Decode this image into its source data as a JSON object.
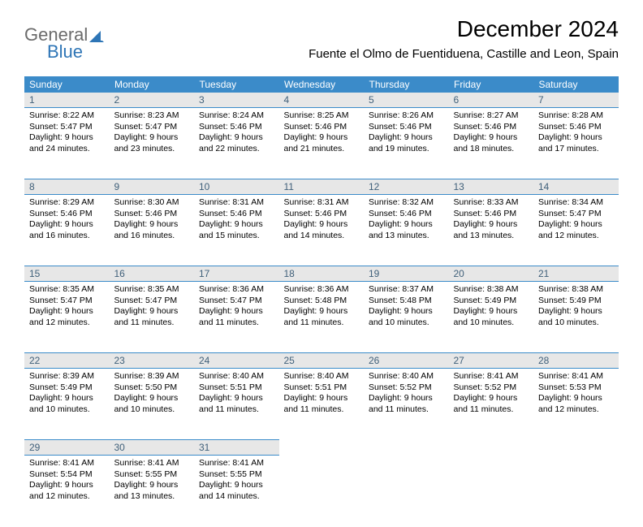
{
  "logo": {
    "gray": "General",
    "blue": "Blue"
  },
  "title": "December 2024",
  "location": "Fuente el Olmo de Fuentiduena, Castille and Leon, Spain",
  "colors": {
    "header_bg": "#3b8bc9",
    "header_text": "#ffffff",
    "daynum_bg": "#e7e7e7",
    "daynum_text": "#40607a",
    "border": "#3b8bc9",
    "logo_gray": "#6b6b6b",
    "logo_blue": "#2e75b6"
  },
  "day_names": [
    "Sunday",
    "Monday",
    "Tuesday",
    "Wednesday",
    "Thursday",
    "Friday",
    "Saturday"
  ],
  "weeks": [
    [
      {
        "n": "1",
        "sr": "8:22 AM",
        "ss": "5:47 PM",
        "dl": "9 hours and 24 minutes."
      },
      {
        "n": "2",
        "sr": "8:23 AM",
        "ss": "5:47 PM",
        "dl": "9 hours and 23 minutes."
      },
      {
        "n": "3",
        "sr": "8:24 AM",
        "ss": "5:46 PM",
        "dl": "9 hours and 22 minutes."
      },
      {
        "n": "4",
        "sr": "8:25 AM",
        "ss": "5:46 PM",
        "dl": "9 hours and 21 minutes."
      },
      {
        "n": "5",
        "sr": "8:26 AM",
        "ss": "5:46 PM",
        "dl": "9 hours and 19 minutes."
      },
      {
        "n": "6",
        "sr": "8:27 AM",
        "ss": "5:46 PM",
        "dl": "9 hours and 18 minutes."
      },
      {
        "n": "7",
        "sr": "8:28 AM",
        "ss": "5:46 PM",
        "dl": "9 hours and 17 minutes."
      }
    ],
    [
      {
        "n": "8",
        "sr": "8:29 AM",
        "ss": "5:46 PM",
        "dl": "9 hours and 16 minutes."
      },
      {
        "n": "9",
        "sr": "8:30 AM",
        "ss": "5:46 PM",
        "dl": "9 hours and 16 minutes."
      },
      {
        "n": "10",
        "sr": "8:31 AM",
        "ss": "5:46 PM",
        "dl": "9 hours and 15 minutes."
      },
      {
        "n": "11",
        "sr": "8:31 AM",
        "ss": "5:46 PM",
        "dl": "9 hours and 14 minutes."
      },
      {
        "n": "12",
        "sr": "8:32 AM",
        "ss": "5:46 PM",
        "dl": "9 hours and 13 minutes."
      },
      {
        "n": "13",
        "sr": "8:33 AM",
        "ss": "5:46 PM",
        "dl": "9 hours and 13 minutes."
      },
      {
        "n": "14",
        "sr": "8:34 AM",
        "ss": "5:47 PM",
        "dl": "9 hours and 12 minutes."
      }
    ],
    [
      {
        "n": "15",
        "sr": "8:35 AM",
        "ss": "5:47 PM",
        "dl": "9 hours and 12 minutes."
      },
      {
        "n": "16",
        "sr": "8:35 AM",
        "ss": "5:47 PM",
        "dl": "9 hours and 11 minutes."
      },
      {
        "n": "17",
        "sr": "8:36 AM",
        "ss": "5:47 PM",
        "dl": "9 hours and 11 minutes."
      },
      {
        "n": "18",
        "sr": "8:36 AM",
        "ss": "5:48 PM",
        "dl": "9 hours and 11 minutes."
      },
      {
        "n": "19",
        "sr": "8:37 AM",
        "ss": "5:48 PM",
        "dl": "9 hours and 10 minutes."
      },
      {
        "n": "20",
        "sr": "8:38 AM",
        "ss": "5:49 PM",
        "dl": "9 hours and 10 minutes."
      },
      {
        "n": "21",
        "sr": "8:38 AM",
        "ss": "5:49 PM",
        "dl": "9 hours and 10 minutes."
      }
    ],
    [
      {
        "n": "22",
        "sr": "8:39 AM",
        "ss": "5:49 PM",
        "dl": "9 hours and 10 minutes."
      },
      {
        "n": "23",
        "sr": "8:39 AM",
        "ss": "5:50 PM",
        "dl": "9 hours and 10 minutes."
      },
      {
        "n": "24",
        "sr": "8:40 AM",
        "ss": "5:51 PM",
        "dl": "9 hours and 11 minutes."
      },
      {
        "n": "25",
        "sr": "8:40 AM",
        "ss": "5:51 PM",
        "dl": "9 hours and 11 minutes."
      },
      {
        "n": "26",
        "sr": "8:40 AM",
        "ss": "5:52 PM",
        "dl": "9 hours and 11 minutes."
      },
      {
        "n": "27",
        "sr": "8:41 AM",
        "ss": "5:52 PM",
        "dl": "9 hours and 11 minutes."
      },
      {
        "n": "28",
        "sr": "8:41 AM",
        "ss": "5:53 PM",
        "dl": "9 hours and 12 minutes."
      }
    ],
    [
      {
        "n": "29",
        "sr": "8:41 AM",
        "ss": "5:54 PM",
        "dl": "9 hours and 12 minutes."
      },
      {
        "n": "30",
        "sr": "8:41 AM",
        "ss": "5:55 PM",
        "dl": "9 hours and 13 minutes."
      },
      {
        "n": "31",
        "sr": "8:41 AM",
        "ss": "5:55 PM",
        "dl": "9 hours and 14 minutes."
      },
      null,
      null,
      null,
      null
    ]
  ],
  "labels": {
    "sunrise": "Sunrise:",
    "sunset": "Sunset:",
    "daylight": "Daylight:"
  }
}
